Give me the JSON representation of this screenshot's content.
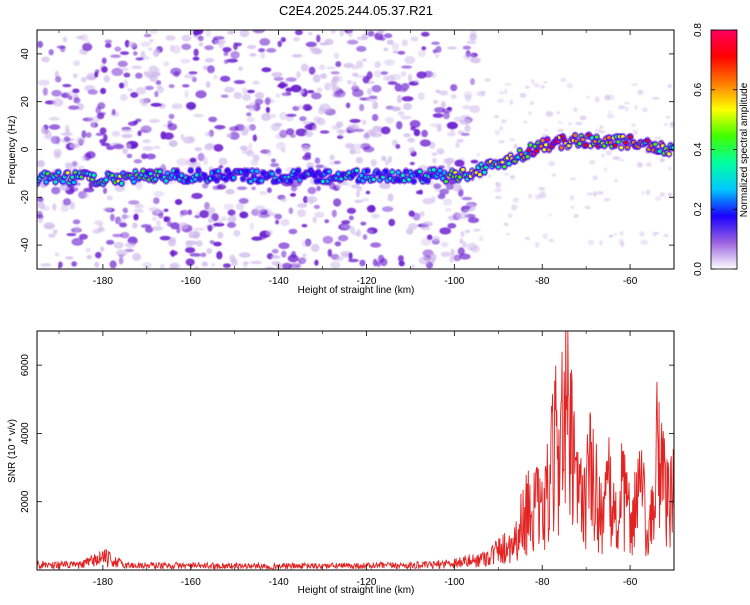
{
  "figure_title": "C2E4.2025.244.05.37.R21",
  "colors": {
    "spec_low": "#cdb6ea",
    "spec_mid": "#6a1bd0",
    "snr_line": "#e32222",
    "colorbar_stops": [
      "#ffffff",
      "#9a62e0",
      "#1a00ff",
      "#00c8ff",
      "#00ffa0",
      "#40ff00",
      "#ffff00",
      "#ff7a00",
      "#ff0000",
      "#ff0060"
    ]
  },
  "chart_data": [
    {
      "type": "heatmap",
      "title": "C2E4.2025.244.05.37.R21",
      "xlabel": "Height of straight line (km)",
      "ylabel": "Frequency (Hz)",
      "xlim": [
        -195,
        -50
      ],
      "ylim": [
        -50,
        50
      ],
      "xticks": [
        -180,
        -160,
        -140,
        -120,
        -100,
        -80,
        -60
      ],
      "yticks": [
        -40,
        -20,
        0,
        20,
        40
      ],
      "colorbar": {
        "label": "Normalized spectral amplitude",
        "range": [
          0,
          0.8
        ],
        "ticks": [
          "0.0",
          "0.2",
          "0.4",
          "0.6",
          "0.8"
        ],
        "tick_values": [
          0,
          0.2,
          0.4,
          0.6,
          0.8
        ]
      },
      "signal_ridge": {
        "x": [
          -195,
          -180,
          -165,
          -150,
          -135,
          -120,
          -110,
          -100,
          -95,
          -90,
          -85,
          -80,
          -70,
          -60,
          -50
        ],
        "freq": [
          -12,
          -12,
          -11,
          -11,
          -11,
          -11,
          -11,
          -11,
          -9,
          -6,
          -2,
          2,
          4,
          3,
          0
        ],
        "peak_amplitude": [
          0.45,
          0.5,
          0.4,
          0.3,
          0.3,
          0.35,
          0.3,
          0.5,
          0.55,
          0.5,
          0.6,
          0.8,
          0.7,
          0.65,
          0.6
        ]
      },
      "noise_region": {
        "x_range": [
          -195,
          -95
        ],
        "freq_range": [
          -50,
          50
        ]
      }
    },
    {
      "type": "line",
      "xlabel": "Height of straight line (km)",
      "ylabel": "SNR (10 * v/v)",
      "xlim": [
        -195,
        -50
      ],
      "ylim": [
        0,
        7000
      ],
      "xticks": [
        -180,
        -160,
        -140,
        -120,
        -100,
        -80,
        -60
      ],
      "yticks": [
        2000,
        4000,
        6000
      ],
      "series": [
        {
          "name": "SNR",
          "x": [
            -195,
            -185,
            -180,
            -175,
            -160,
            -140,
            -120,
            -105,
            -100,
            -95,
            -92,
            -90,
            -88,
            -86,
            -84,
            -82,
            -80,
            -79,
            -78,
            -77,
            -76,
            -75,
            -74,
            -73,
            -72,
            -71,
            -70,
            -69,
            -68,
            -67,
            -66,
            -65,
            -64,
            -63,
            -62,
            -61,
            -60,
            -59,
            -58,
            -57,
            -56,
            -55,
            -54,
            -53,
            -52,
            -51,
            -50
          ],
          "y": [
            250,
            230,
            600,
            220,
            200,
            180,
            200,
            230,
            350,
            450,
            650,
            900,
            1100,
            1400,
            2600,
            3100,
            2400,
            3300,
            4200,
            5600,
            6800,
            6900,
            6600,
            4800,
            3500,
            3200,
            3900,
            4400,
            3700,
            3000,
            2600,
            3700,
            2900,
            2100,
            3500,
            3000,
            2400,
            2800,
            4000,
            3200,
            1100,
            2400,
            5200,
            5700,
            4300,
            2600,
            4000
          ]
        }
      ]
    }
  ]
}
